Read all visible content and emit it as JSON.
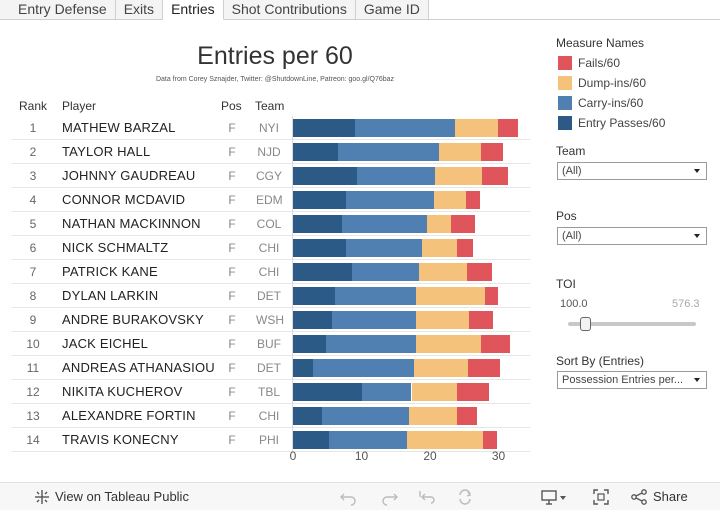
{
  "tabs": [
    {
      "label": "Entry Defense",
      "active": false
    },
    {
      "label": "Exits",
      "active": false
    },
    {
      "label": "Entries",
      "active": true
    },
    {
      "label": "Shot Contributions",
      "active": false
    },
    {
      "label": "Game ID",
      "active": false
    }
  ],
  "title": "Entries per 60",
  "subtitle": "Data from Corey Sznajder, Twitter: @ShutdownLine, Patreon: goo.gl/Q76baz",
  "columns": {
    "rank": "Rank",
    "player": "Player",
    "pos": "Pos",
    "team": "Team"
  },
  "colors": {
    "entry_passes": "#2c5a86",
    "carry_ins": "#4f80b1",
    "dump_ins": "#f5c27c",
    "fails": "#e0545b"
  },
  "chart_data": {
    "type": "bar",
    "orientation": "horizontal",
    "stacked": true,
    "title": "Entries per 60",
    "xlim": [
      0,
      33
    ],
    "x_ticks": [
      0,
      10,
      20,
      30
    ],
    "categories": [
      "MATHEW BARZAL",
      "TAYLOR HALL",
      "JOHNNY GAUDREAU",
      "CONNOR MCDAVID",
      "NATHAN MACKINNON",
      "NICK SCHMALTZ",
      "PATRICK KANE",
      "DYLAN LARKIN",
      "ANDRE BURAKOVSKY",
      "JACK EICHEL",
      "ANDREAS ATHANASIOU",
      "NIKITA KUCHEROV",
      "ALEXANDRE FORTIN",
      "TRAVIS KONECNY"
    ],
    "series": [
      {
        "name": "Entry Passes/60",
        "values": [
          9.0,
          6.5,
          9.3,
          7.7,
          7.1,
          7.8,
          8.6,
          6.2,
          5.7,
          4.8,
          2.9,
          10.1,
          4.3,
          5.3
        ]
      },
      {
        "name": "Carry-ins/60",
        "values": [
          14.7,
          14.8,
          11.5,
          12.9,
          12.4,
          11.1,
          9.8,
          11.8,
          12.2,
          13.1,
          14.8,
          7.2,
          12.6,
          11.4
        ]
      },
      {
        "name": "Dump-ins/60",
        "values": [
          6.2,
          6.2,
          6.8,
          4.7,
          3.6,
          5.1,
          7.0,
          10.1,
          7.8,
          9.5,
          7.8,
          6.7,
          7.0,
          11.0
        ]
      },
      {
        "name": "Fails/60",
        "values": [
          3.0,
          3.2,
          3.8,
          2.0,
          3.4,
          2.3,
          3.7,
          1.8,
          3.5,
          4.3,
          4.7,
          4.6,
          2.9,
          2.1
        ]
      }
    ]
  },
  "rows": [
    {
      "rank": "1",
      "player": "MATHEW BARZAL",
      "pos": "F",
      "team": "NYI"
    },
    {
      "rank": "2",
      "player": "TAYLOR HALL",
      "pos": "F",
      "team": "NJD"
    },
    {
      "rank": "3",
      "player": "JOHNNY GAUDREAU",
      "pos": "F",
      "team": "CGY"
    },
    {
      "rank": "4",
      "player": "CONNOR MCDAVID",
      "pos": "F",
      "team": "EDM"
    },
    {
      "rank": "5",
      "player": "NATHAN MACKINNON",
      "pos": "F",
      "team": "COL"
    },
    {
      "rank": "6",
      "player": "NICK SCHMALTZ",
      "pos": "F",
      "team": "CHI"
    },
    {
      "rank": "7",
      "player": "PATRICK KANE",
      "pos": "F",
      "team": "CHI"
    },
    {
      "rank": "8",
      "player": "DYLAN LARKIN",
      "pos": "F",
      "team": "DET"
    },
    {
      "rank": "9",
      "player": "ANDRE BURAKOVSKY",
      "pos": "F",
      "team": "WSH"
    },
    {
      "rank": "10",
      "player": "JACK EICHEL",
      "pos": "F",
      "team": "BUF"
    },
    {
      "rank": "11",
      "player": "ANDREAS ATHANASIOU",
      "pos": "F",
      "team": "DET"
    },
    {
      "rank": "12",
      "player": "NIKITA KUCHEROV",
      "pos": "F",
      "team": "TBL"
    },
    {
      "rank": "13",
      "player": "ALEXANDRE FORTIN",
      "pos": "F",
      "team": "CHI"
    },
    {
      "rank": "14",
      "player": "TRAVIS KONECNY",
      "pos": "F",
      "team": "PHI"
    }
  ],
  "legend": {
    "title": "Measure Names",
    "items": [
      {
        "label": "Fails/60",
        "color": "#e0545b"
      },
      {
        "label": "Dump-ins/60",
        "color": "#f5c27c"
      },
      {
        "label": "Carry-ins/60",
        "color": "#4f80b1"
      },
      {
        "label": "Entry Passes/60",
        "color": "#2c5a86"
      }
    ]
  },
  "filters": {
    "team": {
      "label": "Team",
      "value": "(All)"
    },
    "pos": {
      "label": "Pos",
      "value": "(All)"
    },
    "toi": {
      "label": "TOI",
      "min": "100.0",
      "max": "576.3"
    },
    "sort": {
      "label": "Sort By (Entries)",
      "value": "Possession Entries per..."
    }
  },
  "toolbar": {
    "view_label": "View on Tableau Public",
    "share_label": "Share",
    "icons": [
      "undo-icon",
      "redo-icon",
      "revert-icon",
      "refresh-icon",
      "download-icon",
      "fullscreen-icon",
      "share-icon"
    ]
  }
}
